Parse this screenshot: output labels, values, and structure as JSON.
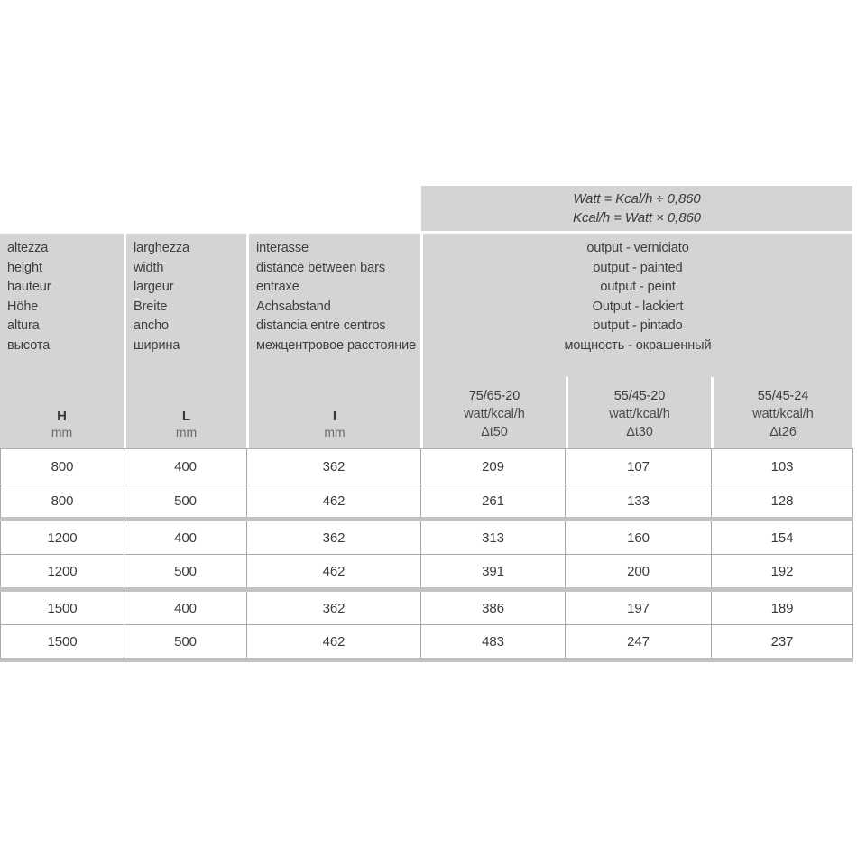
{
  "formula": {
    "line1": "Watt = Kcal/h ÷ 0,860",
    "line2": "Kcal/h = Watt × 0,860"
  },
  "header": {
    "height_col": {
      "labels": [
        "altezza",
        "height",
        "hauteur",
        "Höhe",
        "altura",
        "высота"
      ],
      "symbol": "H",
      "unit": "mm"
    },
    "width_col": {
      "labels": [
        "larghezza",
        "width",
        "largeur",
        "Breite",
        "ancho",
        "ширина"
      ],
      "symbol": "L",
      "unit": "mm"
    },
    "interaxis_col": {
      "labels": [
        "interasse",
        "distance between bars",
        "entraxe",
        "Achsabstand",
        "distancia entre centros",
        "межцентровое расстояние"
      ],
      "symbol": "I",
      "unit": "mm"
    },
    "output_group": {
      "labels": [
        "output - verniciato",
        "output - painted",
        "output - peint",
        "Output - lackiert",
        "output - pintado",
        "мощность - окрашенный"
      ],
      "subcolumns": [
        {
          "regime": "75/65-20",
          "unit": "watt/kcal/h",
          "delta": "Δt50"
        },
        {
          "regime": "55/45-20",
          "unit": "watt/kcal/h",
          "delta": "Δt30"
        },
        {
          "regime": "55/45-24",
          "unit": "watt/kcal/h",
          "delta": "Δt26"
        }
      ]
    }
  },
  "rows": [
    [
      "800",
      "400",
      "362",
      "209",
      "107",
      "103"
    ],
    [
      "800",
      "500",
      "462",
      "261",
      "133",
      "128"
    ],
    [
      "1200",
      "400",
      "362",
      "313",
      "160",
      "154"
    ],
    [
      "1200",
      "500",
      "462",
      "391",
      "200",
      "192"
    ],
    [
      "1500",
      "400",
      "362",
      "386",
      "197",
      "189"
    ],
    [
      "1500",
      "500",
      "462",
      "483",
      "247",
      "237"
    ]
  ],
  "colors": {
    "header_bg": "#d3d4d5",
    "group_separator": "#c3c3c3",
    "grid_line": "#a8a8a8",
    "text": "#3c3c3c"
  }
}
